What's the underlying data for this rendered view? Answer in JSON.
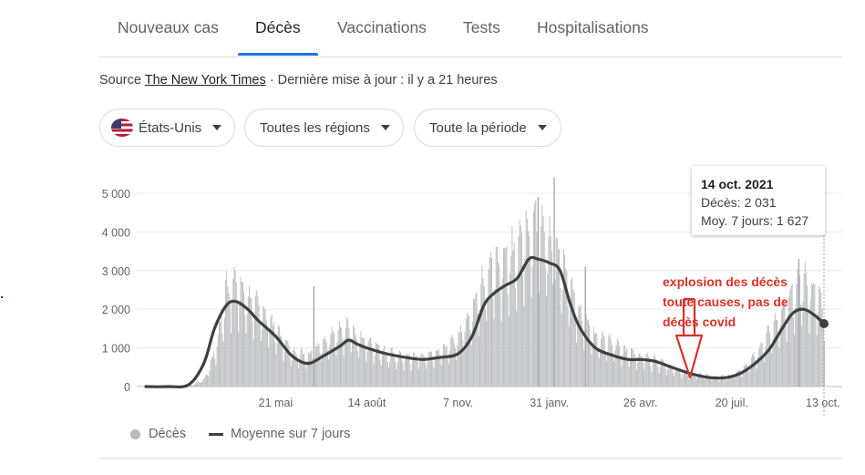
{
  "tabs": [
    {
      "label": "Nouveaux cas",
      "active": false
    },
    {
      "label": "Décès",
      "active": true
    },
    {
      "label": "Vaccinations",
      "active": false
    },
    {
      "label": "Tests",
      "active": false
    },
    {
      "label": "Hospitalisations",
      "active": false
    }
  ],
  "source": {
    "prefix": "Source",
    "link": "The New York Times",
    "updated": "· Dernière mise à jour : il y a 21 heures"
  },
  "filters": {
    "country": "États-Unis",
    "region": "Toutes les régions",
    "period": "Toute la période"
  },
  "tooltip": {
    "date": "14 oct. 2021",
    "deaths": "Décès: 2 031",
    "avg7": "Moy. 7 jours: 1 627"
  },
  "annotation": {
    "lines": [
      "explosion des décès",
      "toute causes, pas de",
      "décès covid"
    ],
    "color": "#d93025"
  },
  "legend": {
    "deaths": "Décès",
    "avg7": "Moyenne sur 7 jours"
  },
  "colors": {
    "bars": "#b9babc",
    "spike_bars": "#a6a7a9",
    "avg_line": "#3c4043",
    "active_tab": "#1a73e8",
    "annotation": "#d93025"
  },
  "chart_data": {
    "type": "bar",
    "ylim": [
      0,
      5500
    ],
    "yticks": [
      0,
      1000,
      2000,
      3000,
      4000,
      5000
    ],
    "ytick_labels": [
      "0",
      "1 000",
      "2 000",
      "3 000",
      "4 000",
      "5 000"
    ],
    "xlim": [
      "2020-01-21",
      "2021-10-14"
    ],
    "xticks": [
      "2020-05-21",
      "2020-08-14",
      "2020-11-07",
      "2021-01-31",
      "2021-04-26",
      "2021-07-20",
      "2021-10-13"
    ],
    "xtick_labels": [
      "21 mai",
      "14 août",
      "7 nov.",
      "31 janv.",
      "26 avr.",
      "20 juil.",
      "13 oct."
    ],
    "grid": true,
    "legend_position": "bottom-left",
    "series": [
      {
        "name": "Décès",
        "kind": "bar",
        "x": [
          "2020-03-01",
          "2020-03-15",
          "2020-03-25",
          "2020-04-05",
          "2020-04-14",
          "2020-04-25",
          "2020-05-05",
          "2020-05-21",
          "2020-06-05",
          "2020-06-20",
          "2020-07-05",
          "2020-07-20",
          "2020-07-28",
          "2020-08-05",
          "2020-08-14",
          "2020-09-01",
          "2020-09-20",
          "2020-10-05",
          "2020-10-20",
          "2020-11-07",
          "2020-11-20",
          "2020-12-01",
          "2020-12-10",
          "2020-12-20",
          "2021-01-01",
          "2021-01-12",
          "2021-01-20",
          "2021-01-31",
          "2021-02-10",
          "2021-02-20",
          "2021-03-01",
          "2021-03-15",
          "2021-04-01",
          "2021-04-15",
          "2021-04-26",
          "2021-05-10",
          "2021-05-25",
          "2021-06-10",
          "2021-06-25",
          "2021-07-08",
          "2021-07-20",
          "2021-08-01",
          "2021-08-15",
          "2021-08-25",
          "2021-09-05",
          "2021-09-15",
          "2021-09-25",
          "2021-10-05",
          "2021-10-14"
        ],
        "values": [
          10,
          200,
          900,
          2600,
          2700,
          2300,
          2100,
          1500,
          900,
          800,
          1200,
          1500,
          1600,
          1300,
          1200,
          900,
          800,
          800,
          900,
          1300,
          2100,
          2800,
          3200,
          3400,
          3600,
          4200,
          4300,
          3900,
          3400,
          2600,
          1900,
          1300,
          1100,
          900,
          800,
          700,
          500,
          350,
          300,
          250,
          300,
          500,
          1000,
          1500,
          2000,
          2600,
          2900,
          2500,
          2031
        ]
      },
      {
        "name": "Moyenne sur 7 jours",
        "kind": "line",
        "x": [
          "2020-01-21",
          "2020-02-10",
          "2020-03-01",
          "2020-03-15",
          "2020-03-25",
          "2020-04-05",
          "2020-04-14",
          "2020-04-25",
          "2020-05-05",
          "2020-05-21",
          "2020-06-05",
          "2020-06-20",
          "2020-07-05",
          "2020-07-20",
          "2020-07-28",
          "2020-08-05",
          "2020-08-14",
          "2020-09-01",
          "2020-09-20",
          "2020-10-05",
          "2020-10-20",
          "2020-11-07",
          "2020-11-20",
          "2020-12-01",
          "2020-12-10",
          "2020-12-20",
          "2021-01-01",
          "2021-01-12",
          "2021-01-20",
          "2021-01-31",
          "2021-02-10",
          "2021-02-20",
          "2021-03-01",
          "2021-03-15",
          "2021-04-01",
          "2021-04-15",
          "2021-04-26",
          "2021-05-10",
          "2021-05-25",
          "2021-06-10",
          "2021-06-25",
          "2021-07-08",
          "2021-07-20",
          "2021-08-01",
          "2021-08-15",
          "2021-08-25",
          "2021-09-05",
          "2021-09-15",
          "2021-09-25",
          "2021-10-05",
          "2021-10-14"
        ],
        "values": [
          0,
          0,
          50,
          600,
          1500,
          2100,
          2200,
          2000,
          1700,
          1300,
          800,
          600,
          800,
          1050,
          1200,
          1100,
          1000,
          850,
          750,
          700,
          750,
          850,
          1300,
          2100,
          2400,
          2600,
          2800,
          3300,
          3300,
          3200,
          3000,
          2100,
          1500,
          1000,
          800,
          700,
          700,
          650,
          500,
          350,
          250,
          220,
          260,
          400,
          700,
          1000,
          1500,
          1900,
          2000,
          1850,
          1627
        ]
      }
    ]
  }
}
